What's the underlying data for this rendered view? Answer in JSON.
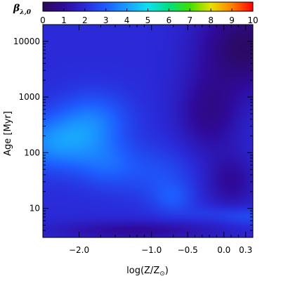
{
  "chart_data": {
    "type": "heatmap",
    "title": "",
    "colorbar": {
      "label": "β",
      "label_subscript": "λ,0",
      "range": [
        0,
        10
      ],
      "ticks": [
        0,
        1,
        2,
        3,
        4,
        5,
        6,
        7,
        8,
        9,
        10
      ],
      "tick_labels": [
        "0",
        "1",
        "2",
        "3",
        "4",
        "5",
        "6",
        "7",
        "8",
        "9",
        "10"
      ],
      "colormap": [
        "#2a0a5a",
        "#2f0a9a",
        "#2a2ad8",
        "#1e5cff",
        "#1a9cff",
        "#10e0f0",
        "#00e080",
        "#40e000",
        "#e8e000",
        "#ff8000",
        "#ff0000"
      ]
    },
    "xaxis": {
      "label": "log(Z/Z",
      "label_sub": "⊙",
      "label_close": ")",
      "range": [
        -2.5,
        0.4
      ],
      "ticks": [
        -2.0,
        -1.0,
        -0.5,
        0.0,
        0.3
      ],
      "tick_labels": [
        "−2.0",
        "−1.0",
        "−0.5",
        "0.0",
        "0.3"
      ],
      "minor_ticks": [
        -1.7,
        -1.5,
        -1.3,
        -1.2,
        -1.1,
        -0.7,
        -0.4,
        -0.3,
        -0.2,
        -0.1,
        0.1,
        0.2
      ]
    },
    "yaxis": {
      "label": "Age",
      "unit": "[Myr]",
      "scale": "log",
      "range": [
        3,
        20000
      ],
      "ticks": [
        10,
        100,
        1000,
        10000
      ],
      "tick_labels": [
        "10",
        "100",
        "1000",
        "10000"
      ]
    },
    "background_value": 2.0,
    "features": [
      {
        "x": -2.3,
        "y": 150,
        "value": 3.8,
        "sx": 0.45,
        "sy": 0.35
      },
      {
        "x": -1.8,
        "y": 400,
        "value": 3.2,
        "sx": 0.35,
        "sy": 0.35
      },
      {
        "x": -1.6,
        "y": 60,
        "value": 2.9,
        "sx": 0.3,
        "sy": 0.3
      },
      {
        "x": -0.9,
        "y": 40,
        "value": 2.7,
        "sx": 0.35,
        "sy": 0.35
      },
      {
        "x": -0.7,
        "y": 15,
        "value": 2.7,
        "sx": 0.2,
        "sy": 0.2
      },
      {
        "x": 0.35,
        "y": 7,
        "value": 2.6,
        "sx": 0.25,
        "sy": 0.12
      },
      {
        "x": -0.1,
        "y": 8,
        "value": 2.4,
        "sx": 0.3,
        "sy": 0.12
      },
      {
        "x": 0.3,
        "y": 8000,
        "value": 0.2,
        "sx": 0.45,
        "sy": 0.55
      },
      {
        "x": -0.2,
        "y": 500,
        "value": 0.8,
        "sx": 0.3,
        "sy": 0.5
      },
      {
        "x": 0.1,
        "y": 30,
        "value": 1.0,
        "sx": 0.25,
        "sy": 0.35
      },
      {
        "x": -1.2,
        "y": 4,
        "value": 1.0,
        "sx": 0.8,
        "sy": 0.12
      }
    ]
  }
}
